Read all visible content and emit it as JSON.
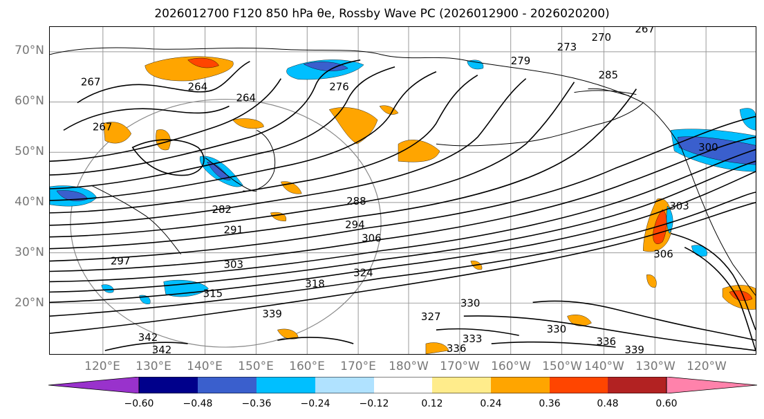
{
  "title": "2026012700 F120 850 hPa θe, Rossby Wave PC (2026012900 - 2026020200)",
  "lat_labels": [
    "70°N",
    "60°N",
    "50°N",
    "40°N",
    "30°N",
    "20°N"
  ],
  "lon_labels": [
    "120°E",
    "130°E",
    "140°E",
    "150°E",
    "160°E",
    "170°E",
    "180°W",
    "170°W",
    "160°W",
    "150°W",
    "140°W",
    "130°W",
    "120°W"
  ],
  "contour_labels": [
    "267",
    "270",
    "273",
    "279",
    "285",
    "264",
    "276",
    "267",
    "264",
    "267",
    "282",
    "288",
    "291",
    "294",
    "297",
    "303",
    "306",
    "315",
    "318",
    "324",
    "330",
    "330",
    "327",
    "333",
    "336",
    "336",
    "339",
    "342",
    "342",
    "339",
    "300",
    "303",
    "306"
  ],
  "colorbar": {
    "ticks": [
      "−0.60",
      "−0.48",
      "−0.36",
      "−0.24",
      "−0.12",
      "0.12",
      "0.24",
      "0.36",
      "0.48",
      "0.60"
    ],
    "colors": [
      "#9932cc",
      "#00008b",
      "#3a5fcd",
      "#00bfff",
      "#b0e2ff",
      "#ffffff",
      "#ffec8b",
      "#ffa500",
      "#ff4500",
      "#b22222",
      "#ff82ab"
    ]
  }
}
